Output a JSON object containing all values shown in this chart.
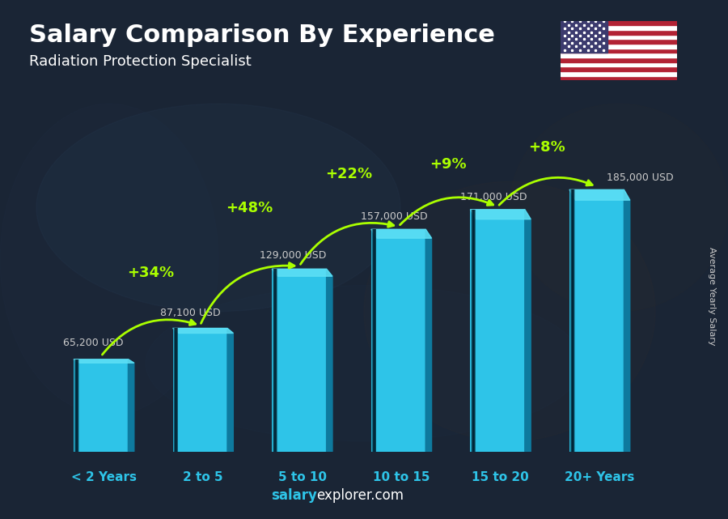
{
  "title": "Salary Comparison By Experience",
  "subtitle": "Radiation Protection Specialist",
  "ylabel": "Average Yearly Salary",
  "categories": [
    "< 2 Years",
    "2 to 5",
    "5 to 10",
    "10 to 15",
    "15 to 20",
    "20+ Years"
  ],
  "values": [
    65200,
    87100,
    129000,
    157000,
    171000,
    185000
  ],
  "value_labels": [
    "65,200 USD",
    "87,100 USD",
    "129,000 USD",
    "157,000 USD",
    "171,000 USD",
    "185,000 USD"
  ],
  "pct_labels": [
    "+34%",
    "+48%",
    "+22%",
    "+9%",
    "+8%"
  ],
  "bar_color_face": "#2ec4e8",
  "bar_color_right": "#0e7a9e",
  "bar_color_top": "#5ee0f5",
  "background_color": "#1a2535",
  "title_color": "#ffffff",
  "subtitle_color": "#ffffff",
  "value_label_color": "#cccccc",
  "pct_label_color": "#aaff00",
  "arrow_color": "#aaff00",
  "category_color": "#2ec4e8",
  "ylabel_color": "#cccccc",
  "brand_bold": "salary",
  "brand_normal": "explorer.com",
  "brand_color_bold": "#2ec4e8",
  "brand_color_normal": "#ffffff",
  "ylim_max": 220000,
  "bar_width": 0.55,
  "depth": 0.06
}
